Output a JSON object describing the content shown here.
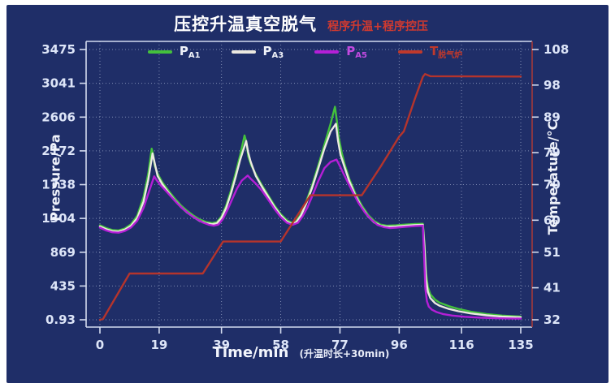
{
  "title": {
    "main": "压控升温真空脱气",
    "sub": "程序升温+程序控压"
  },
  "axes": {
    "left": {
      "label": "Pressure/Pa"
    },
    "right": {
      "label": "Temperature/°C"
    },
    "bottom": {
      "label": "Time/min",
      "note": "(升温时长+30min)"
    }
  },
  "legend": {
    "items": [
      {
        "main": "P",
        "sub": "A1",
        "swatch_color": "#44c13c",
        "text_color": "#eef1f8"
      },
      {
        "main": "P",
        "sub": "A3",
        "swatch_color": "#ece9e0",
        "text_color": "#eef1f8"
      },
      {
        "main": "P",
        "sub": "A5",
        "swatch_color": "#b41fd6",
        "text_color": "#c24ae0"
      },
      {
        "main": "T",
        "sub": "脱气炉",
        "swatch_color": "#c0392c",
        "text_color": "#c0392c"
      }
    ]
  },
  "colors": {
    "background": "#1f2e68",
    "grid": "#ccd6ee",
    "spine": "#d4dcef",
    "right_spine": "#a43a3a",
    "tick_label": "#dde5f8",
    "title": "#ffffff",
    "subtitle": "#d03a30",
    "series_green": "#44c13c",
    "series_white": "#ece9e0",
    "series_magenta": "#b41fd6",
    "series_red": "#b5342c"
  },
  "chart_data": {
    "type": "line",
    "title": "压控升温真空脱气 程序升温+程序控压",
    "xlabel": "Time/min (升温时长+30min)",
    "ylabel_left": "Pressure/Pa",
    "ylabel_right": "Temperature/°C",
    "grid": true,
    "legend_position": "top-inside",
    "xlim": [
      0,
      135
    ],
    "x_ticks": [
      0,
      19,
      39,
      58,
      77,
      96,
      116,
      135
    ],
    "ylim_left": [
      0.93,
      3475
    ],
    "left_ticks": [
      0.93,
      435,
      869,
      1304,
      1738,
      2172,
      2606,
      3041,
      3475
    ],
    "ylim_right": [
      32,
      108
    ],
    "right_ticks": [
      32,
      41,
      51,
      60,
      70,
      79,
      89,
      98,
      108
    ],
    "series": [
      {
        "name": "PA1",
        "axis": "left",
        "color": "#44c13c",
        "points": [
          [
            0,
            1215
          ],
          [
            2,
            1180
          ],
          [
            4,
            1155
          ],
          [
            6,
            1150
          ],
          [
            8,
            1175
          ],
          [
            10,
            1230
          ],
          [
            12,
            1340
          ],
          [
            14,
            1580
          ],
          [
            15.5,
            1880
          ],
          [
            16.6,
            2200
          ],
          [
            17.1,
            2120
          ],
          [
            17.6,
            1980
          ],
          [
            18.5,
            1880
          ],
          [
            20,
            1770
          ],
          [
            22,
            1660
          ],
          [
            24,
            1560
          ],
          [
            26,
            1470
          ],
          [
            28,
            1400
          ],
          [
            30,
            1340
          ],
          [
            32,
            1290
          ],
          [
            34,
            1258
          ],
          [
            36,
            1245
          ],
          [
            37.5,
            1255
          ],
          [
            39,
            1330
          ],
          [
            40.5,
            1470
          ],
          [
            42,
            1660
          ],
          [
            43.5,
            1880
          ],
          [
            45,
            2120
          ],
          [
            46.4,
            2370
          ],
          [
            47,
            2280
          ],
          [
            47.6,
            2100
          ],
          [
            48.5,
            1990
          ],
          [
            50,
            1870
          ],
          [
            52,
            1730
          ],
          [
            54,
            1600
          ],
          [
            56,
            1470
          ],
          [
            58,
            1360
          ],
          [
            60,
            1280
          ],
          [
            61.5,
            1250
          ],
          [
            63,
            1270
          ],
          [
            64.5,
            1360
          ],
          [
            66,
            1500
          ],
          [
            68,
            1720
          ],
          [
            70,
            1980
          ],
          [
            72,
            2250
          ],
          [
            74,
            2520
          ],
          [
            75.4,
            2740
          ],
          [
            76,
            2560
          ],
          [
            76.6,
            2350
          ],
          [
            77.5,
            2160
          ],
          [
            78.5,
            2000
          ],
          [
            80,
            1810
          ],
          [
            82,
            1620
          ],
          [
            84,
            1470
          ],
          [
            86,
            1350
          ],
          [
            88,
            1270
          ],
          [
            90,
            1225
          ],
          [
            92,
            1210
          ],
          [
            95,
            1215
          ],
          [
            98,
            1225
          ],
          [
            101,
            1232
          ],
          [
            103.6,
            1235
          ],
          [
            104.1,
            1000
          ],
          [
            104.6,
            600
          ],
          [
            105.2,
            420
          ],
          [
            106,
            330
          ],
          [
            107.5,
            260
          ],
          [
            109,
            220
          ],
          [
            112,
            175
          ],
          [
            115,
            140
          ],
          [
            119,
            105
          ],
          [
            124,
            75
          ],
          [
            129,
            55
          ],
          [
            135,
            42
          ]
        ]
      },
      {
        "name": "PA3",
        "axis": "left",
        "color": "#ece9e0",
        "points": [
          [
            0,
            1200
          ],
          [
            2,
            1165
          ],
          [
            4,
            1140
          ],
          [
            6,
            1135
          ],
          [
            8,
            1160
          ],
          [
            10,
            1210
          ],
          [
            12,
            1310
          ],
          [
            14,
            1520
          ],
          [
            15.5,
            1800
          ],
          [
            16.9,
            2140
          ],
          [
            17.5,
            2030
          ],
          [
            18.5,
            1850
          ],
          [
            20,
            1745
          ],
          [
            22,
            1635
          ],
          [
            24,
            1535
          ],
          [
            26,
            1450
          ],
          [
            28,
            1380
          ],
          [
            30,
            1322
          ],
          [
            32,
            1272
          ],
          [
            34,
            1242
          ],
          [
            36,
            1230
          ],
          [
            37.5,
            1240
          ],
          [
            39,
            1310
          ],
          [
            40.5,
            1440
          ],
          [
            42,
            1620
          ],
          [
            43.5,
            1830
          ],
          [
            45,
            2060
          ],
          [
            46.9,
            2300
          ],
          [
            47.5,
            2160
          ],
          [
            48.3,
            2040
          ],
          [
            49,
            1960
          ],
          [
            50,
            1850
          ],
          [
            52,
            1710
          ],
          [
            54,
            1580
          ],
          [
            56,
            1450
          ],
          [
            58,
            1342
          ],
          [
            60,
            1262
          ],
          [
            61.5,
            1235
          ],
          [
            63,
            1255
          ],
          [
            64.5,
            1340
          ],
          [
            66,
            1475
          ],
          [
            68,
            1690
          ],
          [
            70,
            1940
          ],
          [
            72,
            2200
          ],
          [
            74,
            2420
          ],
          [
            75.7,
            2520
          ],
          [
            76.4,
            2300
          ],
          [
            77.2,
            2120
          ],
          [
            78.5,
            1960
          ],
          [
            80,
            1780
          ],
          [
            82,
            1592
          ],
          [
            84,
            1445
          ],
          [
            86,
            1330
          ],
          [
            88,
            1252
          ],
          [
            90,
            1210
          ],
          [
            92,
            1196
          ],
          [
            95,
            1200
          ],
          [
            98,
            1210
          ],
          [
            101,
            1218
          ],
          [
            103.6,
            1222
          ],
          [
            104.1,
            950
          ],
          [
            104.6,
            520
          ],
          [
            105.2,
            360
          ],
          [
            106,
            280
          ],
          [
            107.5,
            215
          ],
          [
            109,
            180
          ],
          [
            112,
            140
          ],
          [
            115,
            110
          ],
          [
            119,
            82
          ],
          [
            124,
            58
          ],
          [
            129,
            42
          ],
          [
            135,
            32
          ]
        ]
      },
      {
        "name": "PA5",
        "axis": "left",
        "color": "#b41fd6",
        "points": [
          [
            0,
            1185
          ],
          [
            2,
            1148
          ],
          [
            4,
            1126
          ],
          [
            6,
            1120
          ],
          [
            8,
            1142
          ],
          [
            10,
            1188
          ],
          [
            12,
            1275
          ],
          [
            14,
            1440
          ],
          [
            16,
            1680
          ],
          [
            17.4,
            1845
          ],
          [
            18.2,
            1795
          ],
          [
            19.5,
            1730
          ],
          [
            21,
            1665
          ],
          [
            23,
            1575
          ],
          [
            25,
            1490
          ],
          [
            27,
            1415
          ],
          [
            29,
            1350
          ],
          [
            31,
            1298
          ],
          [
            33,
            1252
          ],
          [
            35,
            1222
          ],
          [
            36.5,
            1210
          ],
          [
            38,
            1225
          ],
          [
            39.5,
            1300
          ],
          [
            41,
            1420
          ],
          [
            42.5,
            1560
          ],
          [
            44,
            1690
          ],
          [
            45.5,
            1790
          ],
          [
            47.4,
            1855
          ],
          [
            48.5,
            1808
          ],
          [
            50,
            1750
          ],
          [
            52,
            1660
          ],
          [
            54,
            1545
          ],
          [
            56,
            1425
          ],
          [
            58,
            1322
          ],
          [
            60,
            1248
          ],
          [
            61.8,
            1222
          ],
          [
            63.5,
            1248
          ],
          [
            65,
            1330
          ],
          [
            66.5,
            1440
          ],
          [
            68,
            1580
          ],
          [
            70,
            1780
          ],
          [
            72,
            1950
          ],
          [
            74,
            2030
          ],
          [
            75.9,
            2060
          ],
          [
            76.8,
            1990
          ],
          [
            78,
            1890
          ],
          [
            79.5,
            1770
          ],
          [
            81,
            1650
          ],
          [
            83,
            1500
          ],
          [
            85,
            1380
          ],
          [
            87,
            1290
          ],
          [
            89,
            1222
          ],
          [
            91,
            1192
          ],
          [
            93,
            1180
          ],
          [
            95,
            1185
          ],
          [
            98,
            1196
          ],
          [
            101,
            1205
          ],
          [
            103.6,
            1210
          ],
          [
            104,
            800
          ],
          [
            104.4,
            400
          ],
          [
            104.9,
            240
          ],
          [
            105.5,
            170
          ],
          [
            106.5,
            130
          ],
          [
            108,
            100
          ],
          [
            110,
            75
          ],
          [
            113,
            55
          ],
          [
            117,
            40
          ],
          [
            122,
            28
          ],
          [
            128,
            20
          ],
          [
            135,
            16
          ]
        ]
      },
      {
        "name": "T脱气炉",
        "axis": "right",
        "color": "#b5342c",
        "points": [
          [
            0,
            32
          ],
          [
            1,
            32.2
          ],
          [
            9.5,
            45
          ],
          [
            33,
            45
          ],
          [
            39.5,
            54
          ],
          [
            58,
            54
          ],
          [
            67.5,
            67
          ],
          [
            84,
            67
          ],
          [
            90,
            75
          ],
          [
            96,
            83.5
          ],
          [
            97.5,
            85
          ],
          [
            101,
            94
          ],
          [
            103.6,
            100.3
          ],
          [
            104.3,
            101.1
          ],
          [
            106,
            100.5
          ],
          [
            135,
            100.4
          ]
        ]
      }
    ]
  }
}
